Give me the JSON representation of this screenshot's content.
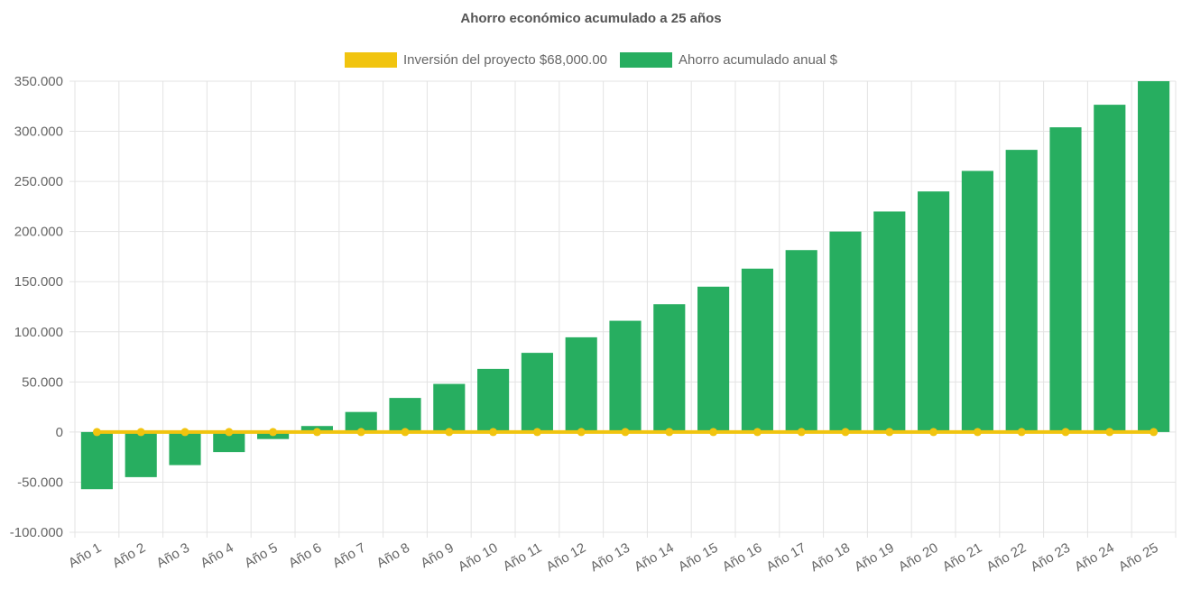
{
  "chart_data": {
    "type": "bar",
    "title": "Ahorro económico acumulado a 25 años",
    "categories": [
      "Año 1",
      "Año 2",
      "Año 3",
      "Año 4",
      "Año 5",
      "Año 6",
      "Año 7",
      "Año 8",
      "Año 9",
      "Año 10",
      "Año 11",
      "Año 12",
      "Año 13",
      "Año 14",
      "Año 15",
      "Año 16",
      "Año 17",
      "Año 18",
      "Año 19",
      "Año 20",
      "Año 21",
      "Año 22",
      "Año 23",
      "Año 24",
      "Año 25"
    ],
    "series": [
      {
        "name": "Inversión del proyecto $68,000.00",
        "type": "line",
        "color": "#f1c40f",
        "values": [
          0,
          0,
          0,
          0,
          0,
          0,
          0,
          0,
          0,
          0,
          0,
          0,
          0,
          0,
          0,
          0,
          0,
          0,
          0,
          0,
          0,
          0,
          0,
          0,
          0
        ]
      },
      {
        "name": "Ahorro acumulado anual $",
        "type": "bar",
        "color": "#27ae60",
        "values": [
          -57000,
          -45000,
          -33000,
          -20000,
          -7000,
          6000,
          20000,
          34000,
          48000,
          63000,
          79000,
          94500,
          111000,
          127500,
          145000,
          163000,
          181500,
          200000,
          220000,
          240000,
          260500,
          281500,
          304000,
          326500,
          350000
        ]
      }
    ],
    "ylim": [
      -100000,
      350000
    ],
    "yticks": [
      350000,
      300000,
      250000,
      200000,
      150000,
      100000,
      50000,
      0,
      -50000,
      -100000
    ],
    "ytick_labels": [
      "350.000",
      "300.000",
      "250.000",
      "200.000",
      "150.000",
      "100.000",
      "50.000",
      "0",
      "-50.000",
      "-100.000"
    ],
    "grid": true,
    "legend_position": "top"
  }
}
